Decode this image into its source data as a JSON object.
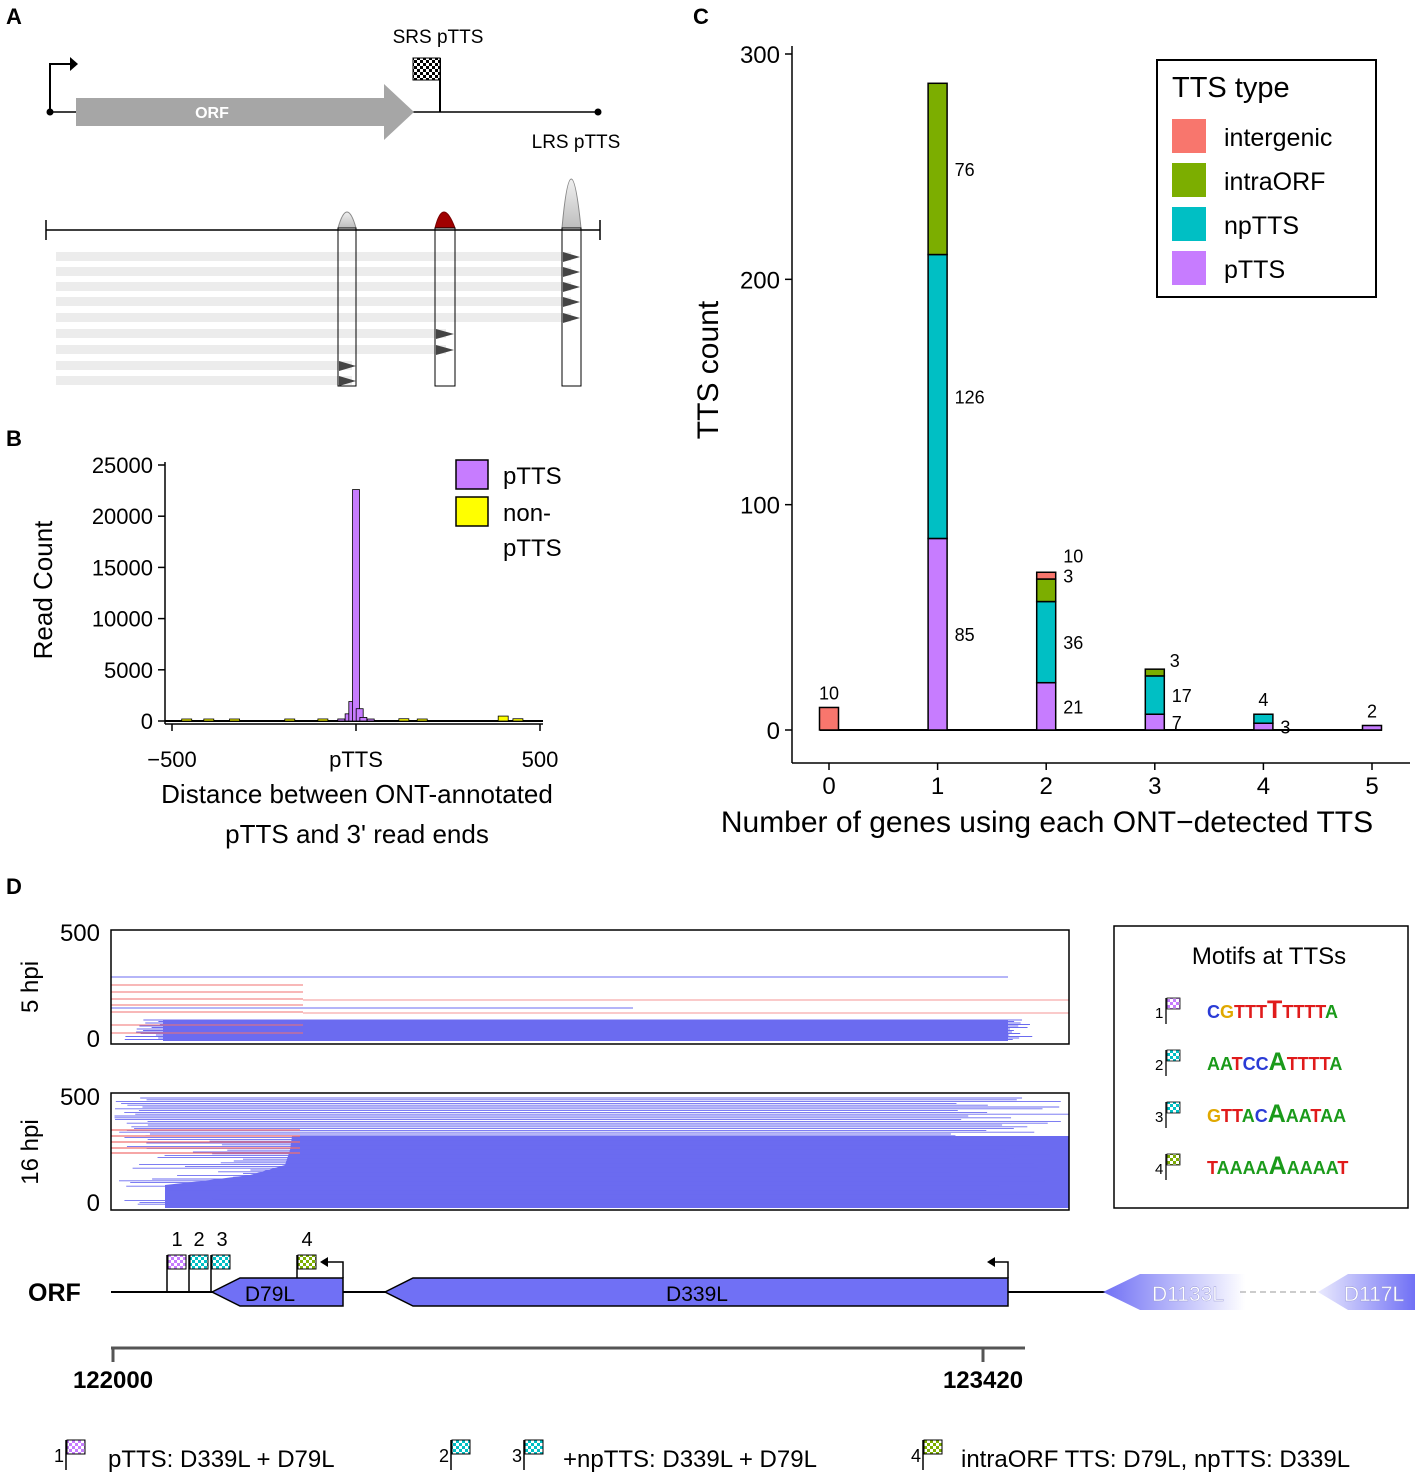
{
  "colors": {
    "pTTS": "#C77CFF",
    "npTTS": "#00BFC4",
    "intraORF": "#7CAE00",
    "intergenic": "#F8766D",
    "nonpTTS": "#FFFF00",
    "orf_blue": "#7070F5",
    "read_blue": "#6b6bf0",
    "read_red": "#f07070",
    "grey_arrow": "#a6a6a6",
    "dark_red_peak": "#a00000",
    "motif_C": "#2a3bd6",
    "motif_G": "#e0a800",
    "motif_T": "#e01b1b",
    "motif_A": "#1a9a1a"
  },
  "panels": {
    "A": "A",
    "B": "B",
    "C": "C",
    "D": "D"
  },
  "panelA": {
    "orf_label": "ORF",
    "srs_label": "SRS pTTS",
    "lrs_label": "LRS pTTS",
    "read_groups": [
      {
        "name": "left-peak",
        "reads": 2
      },
      {
        "name": "middle-peak",
        "reads": 2
      },
      {
        "name": "right-peak",
        "reads": 5
      }
    ]
  },
  "chart_data": [
    {
      "id": "B",
      "type": "bar",
      "title": "",
      "xlabel_lines": [
        "Distance between ONT-annotated",
        "pTTS and 3' read ends"
      ],
      "ylabel": "Read Count",
      "xlim": [
        -500,
        500
      ],
      "ylim": [
        0,
        25000
      ],
      "yticks": [
        0,
        5000,
        10000,
        15000,
        20000,
        25000
      ],
      "xtick_labels": [
        {
          "value": -500,
          "label": "−500"
        },
        {
          "value": 0,
          "label": "pTTS"
        },
        {
          "value": 500,
          "label": "500"
        }
      ],
      "bin_width": 20,
      "legend": [
        "pTTS",
        "non-pTTS"
      ],
      "legend_lines": [
        "pTTS",
        "non-",
        "pTTS"
      ],
      "legend_position": "top-right",
      "series": [
        {
          "name": "pTTS",
          "bins": [
            {
              "x": -40,
              "v": 200
            },
            {
              "x": -20,
              "v": 700
            },
            {
              "x": -10,
              "v": 1900
            },
            {
              "x": 0,
              "v": 22600
            },
            {
              "x": 10,
              "v": 1200
            },
            {
              "x": 20,
              "v": 350
            },
            {
              "x": 40,
              "v": 150
            }
          ]
        },
        {
          "name": "non-pTTS",
          "bins": [
            {
              "x": -460,
              "v": 180
            },
            {
              "x": -400,
              "v": 150
            },
            {
              "x": -330,
              "v": 120
            },
            {
              "x": -180,
              "v": 160
            },
            {
              "x": -90,
              "v": 200
            },
            {
              "x": 130,
              "v": 220
            },
            {
              "x": 180,
              "v": 150
            },
            {
              "x": 400,
              "v": 480
            },
            {
              "x": 440,
              "v": 220
            }
          ]
        }
      ]
    },
    {
      "id": "C",
      "type": "bar",
      "stacked": true,
      "xlabel": "Number of genes using each ONT−detected TTS",
      "ylabel": "TTS count",
      "categories": [
        "0",
        "1",
        "2",
        "3",
        "4",
        "5"
      ],
      "ylim": [
        0,
        300
      ],
      "yticks": [
        0,
        100,
        200,
        300
      ],
      "legend_title": "TTS type",
      "legend_position": "top-right",
      "stack_order": [
        "pTTS",
        "npTTS",
        "intraORF",
        "intergenic"
      ],
      "series": [
        {
          "name": "intergenic",
          "values": [
            10,
            0,
            3,
            0,
            0,
            0
          ]
        },
        {
          "name": "intraORF",
          "values": [
            0,
            76,
            10,
            3,
            0,
            0
          ]
        },
        {
          "name": "npTTS",
          "values": [
            0,
            126,
            36,
            17,
            4,
            0
          ]
        },
        {
          "name": "pTTS",
          "values": [
            0,
            85,
            21,
            7,
            3,
            2
          ]
        }
      ],
      "data_labels": [
        {
          "cat": "0",
          "series": "intergenic",
          "text": "10",
          "pos": "top"
        },
        {
          "cat": "1",
          "series": "intraORF",
          "text": "76",
          "pos": "right"
        },
        {
          "cat": "1",
          "series": "npTTS",
          "text": "126",
          "pos": "right"
        },
        {
          "cat": "1",
          "series": "pTTS",
          "text": "85",
          "pos": "right"
        },
        {
          "cat": "2",
          "series": "intergenic",
          "text": "3",
          "pos": "right"
        },
        {
          "cat": "2",
          "series": "intraORF",
          "text": "10",
          "pos": "right"
        },
        {
          "cat": "2",
          "series": "npTTS",
          "text": "36",
          "pos": "right"
        },
        {
          "cat": "2",
          "series": "pTTS",
          "text": "21",
          "pos": "right"
        },
        {
          "cat": "3",
          "series": "intraORF",
          "text": "3",
          "pos": "right-up"
        },
        {
          "cat": "3",
          "series": "npTTS",
          "text": "17",
          "pos": "right"
        },
        {
          "cat": "3",
          "series": "pTTS",
          "text": "7",
          "pos": "right"
        },
        {
          "cat": "4",
          "series": "npTTS",
          "text": "4",
          "pos": "top"
        },
        {
          "cat": "4",
          "series": "pTTS",
          "text": "3",
          "pos": "right"
        },
        {
          "cat": "5",
          "series": "pTTS",
          "text": "2",
          "pos": "top"
        }
      ]
    }
  ],
  "panelD": {
    "track1": {
      "label": "5 hpi",
      "ymax": "500",
      "ymin": "0"
    },
    "track2": {
      "label": "16 hpi",
      "ymax": "500",
      "ymin": "0"
    },
    "orf_row_label": "ORF",
    "genes": [
      "D79L",
      "D339L",
      "D1133L",
      "D117L"
    ],
    "coord_start": "122000",
    "coord_end": "123420",
    "flag_numbers": [
      "1",
      "2",
      "3",
      "4"
    ],
    "motif_box_title": "Motifs at TTSs",
    "motifs": [
      {
        "num": "1",
        "flag": "pTTS",
        "seq": "CGTTTTTTTTA",
        "big": 5
      },
      {
        "num": "2",
        "flag": "npTTS",
        "seq": "AATCCATTTTA",
        "big": 5
      },
      {
        "num": "3",
        "flag": "npTTS",
        "seq": "GTTACAAATAA",
        "big": 5
      },
      {
        "num": "4",
        "flag": "intraORF",
        "seq": "TAAAAAAAAAT",
        "big": 5
      }
    ],
    "legend_items": [
      {
        "nums": [
          "1"
        ],
        "text": "pTTS: D339L + D79L"
      },
      {
        "nums": [
          "2",
          "3"
        ],
        "text": "+npTTS: D339L + D79L"
      },
      {
        "nums": [
          "4"
        ],
        "text": "intraORF TTS: D79L, npTTS: D339L"
      }
    ]
  }
}
